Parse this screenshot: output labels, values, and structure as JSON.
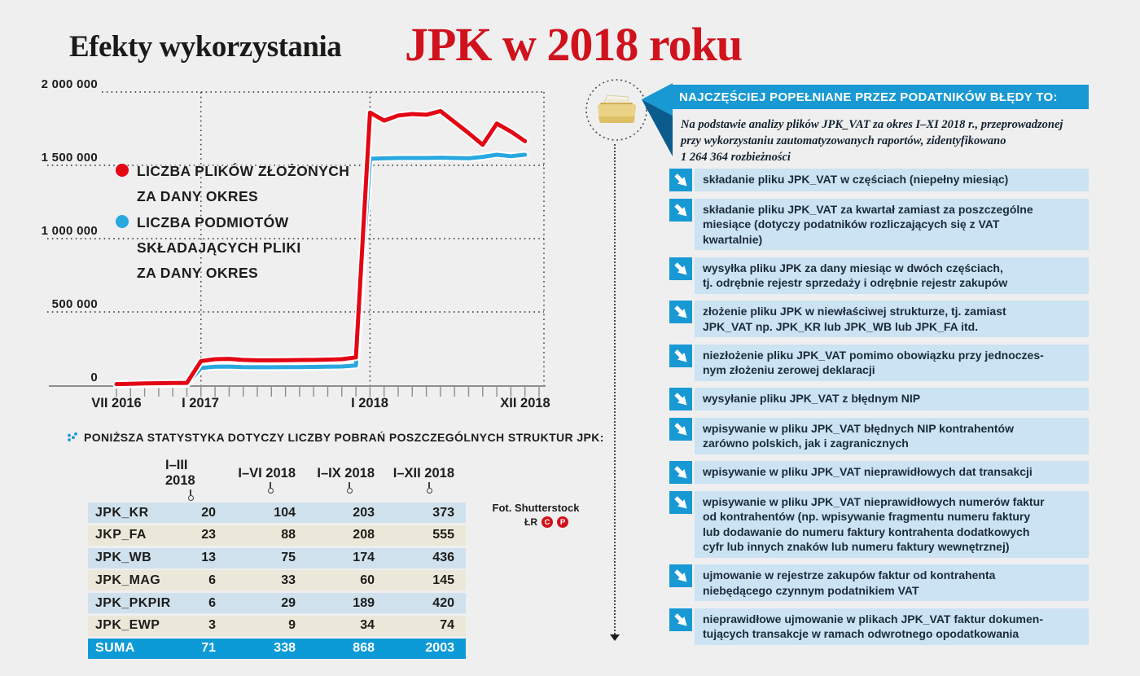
{
  "page": {
    "title_black": "Efekty wykorzystania",
    "title_red": "JPK w 2018 roku"
  },
  "chart_data": {
    "type": "line",
    "grid": "dotted",
    "ylim": [
      0,
      2000000
    ],
    "y_tick_labels": [
      "2 000 000",
      "1 500 000",
      "1 000 000",
      "500 000",
      "0"
    ],
    "y_tick_values": [
      2000000,
      1500000,
      1000000,
      500000,
      0
    ],
    "x_tick_labels": [
      "VII 2016",
      "I 2017",
      "I 2018",
      "XII 2018"
    ],
    "x": [
      "VII 2016",
      "VIII 2016",
      "IX 2016",
      "X 2016",
      "XI 2016",
      "XII 2016",
      "I 2017",
      "II 2017",
      "III 2017",
      "IV 2017",
      "V 2017",
      "VI 2017",
      "VII 2017",
      "VIII 2017",
      "IX 2017",
      "X 2017",
      "XI 2017",
      "XII 2017",
      "I 2018",
      "II 2018",
      "III 2018",
      "IV 2018",
      "V 2018",
      "VI 2018",
      "VII 2018",
      "VIII 2018",
      "IX 2018",
      "X 2018",
      "XI 2018",
      "XII 2018"
    ],
    "series": [
      {
        "name": "LICZBA PLIKÓW ZŁOŻONYCH ZA DANY OKRES",
        "color": "#e30613",
        "values": [
          8000,
          10000,
          12000,
          14000,
          15000,
          16000,
          165000,
          178000,
          180000,
          173000,
          170000,
          170000,
          171000,
          172000,
          173000,
          175000,
          178000,
          190000,
          1860000,
          1805000,
          1840000,
          1850000,
          1845000,
          1870000,
          1795000,
          1720000,
          1640000,
          1785000,
          1730000,
          1665000
        ]
      },
      {
        "name": "LICZBA PODMIOTÓW SKŁADAJĄCYCH PLIKI ZA DANY OKRES",
        "color": "#29a8e0",
        "values": [
          3000,
          4000,
          5000,
          6000,
          7000,
          8000,
          118000,
          126000,
          127000,
          124000,
          123000,
          123000,
          124000,
          124000,
          125000,
          126000,
          128000,
          135000,
          1545000,
          1548000,
          1550000,
          1550000,
          1550000,
          1552000,
          1550000,
          1548000,
          1558000,
          1572000,
          1562000,
          1572000
        ]
      }
    ],
    "legend": [
      {
        "label": "LICZBA PLIKÓW ZŁOŻONYCH\nZA DANY OKRES",
        "color": "#e30613"
      },
      {
        "label": "LICZBA PODMIOTÓW\nSKŁADAJĄCYCH PLIKI\nZA DANY OKRES",
        "color": "#29a8e0"
      }
    ]
  },
  "downloads_table": {
    "heading": "PONIŻSZA STATYSTYKA DOTYCZY LICZBY POBRAŃ POSZCZEGÓLNYCH STRUKTUR JPK:",
    "columns": [
      "I–III 2018",
      "I–VI 2018",
      "I–IX 2018",
      "I–XII 2018"
    ],
    "rows": [
      {
        "name": "JPK_KR",
        "values": [
          "20",
          "104",
          "203",
          "373"
        ]
      },
      {
        "name": "JKP_FA",
        "values": [
          "23",
          "88",
          "208",
          "555"
        ]
      },
      {
        "name": "JPK_WB",
        "values": [
          "13",
          "75",
          "174",
          "436"
        ]
      },
      {
        "name": "JPK_MAG",
        "values": [
          "6",
          "33",
          "60",
          "145"
        ]
      },
      {
        "name": "JPK_PKPIR",
        "values": [
          "6",
          "29",
          "189",
          "420"
        ]
      },
      {
        "name": "JPK_EWP",
        "values": [
          "3",
          "9",
          "34",
          "74"
        ]
      }
    ],
    "total_row": {
      "name": "SUMA",
      "values": [
        "71",
        "338",
        "868",
        "2003"
      ]
    }
  },
  "credits": {
    "photo": "Fot. Shutterstock",
    "initials": "ŁR",
    "badges": [
      "C",
      "P"
    ]
  },
  "errors_panel": {
    "header": "NAJCZĘŚCIEJ POPEŁNIANE PRZEZ PODATNIKÓW BŁĘDY TO:",
    "intro": "Na podstawie analizy plików JPK_VAT za okres I–XI 2018 r., przeprowadzonej\nprzy wykorzystaniu zautomatyzowanych raportów, zidentyfikowano\n1 264 364  rozbieżności",
    "items": [
      "składanie pliku JPK_VAT w częściach (niepełny miesiąc)",
      "składanie pliku JPK_VAT za kwartał zamiast za poszczególne\nmiesiące (dotyczy podatników rozliczających się z VAT\nkwartalnie)",
      "wysyłka pliku JPK za dany miesiąc w dwóch częściach,\ntj. odrębnie rejestr sprzedaży i odrębnie rejestr zakupów",
      "złożenie pliku JPK w niewłaściwej strukturze, tj. zamiast\nJPK_VAT np. JPK_KR lub JPK_WB lub JPK_FA itd.",
      "niezłożenie pliku JPK_VAT pomimo obowiązku przy jednoczes-\nnym złożeniu zerowej deklaracji",
      "wysyłanie pliku JPK_VAT z błędnym NIP",
      "wpisywanie w pliku JPK_VAT błędnych NIP kontrahentów\nzarówno polskich, jak i zagranicznych",
      "wpisywanie w pliku JPK_VAT nieprawidłowych dat transakcji",
      "wpisywanie w pliku JPK_VAT nieprawidłowych numerów faktur\nod kontrahentów (np. wpisywanie fragmentu numeru faktury\nlub dodawanie do numeru faktury kontrahenta dodatkowych\ncyfr lub innych znaków lub numeru faktury wewnętrznej)",
      "ujmowanie w rejestrze zakupów faktur od kontrahenta\nniebędącego czynnym podatnikiem VAT",
      "nieprawidłowe ujmowanie w plikach JPK_VAT faktur dokumen-\ntujących transakcje w ramach odwrotnego opodatkowania"
    ]
  },
  "colors": {
    "background": "#efeff0",
    "title_red": "#d0121c",
    "series_red": "#e30613",
    "series_blue": "#29a8e0",
    "panel_blue": "#1899d4",
    "panel_fold_blue": "#0b5c8c",
    "error_box_bg": "#cbe3f2",
    "table_row_blue": "#cfe1ec",
    "table_row_beige": "#ece8d9",
    "table_total_blue": "#0d9bd8"
  }
}
